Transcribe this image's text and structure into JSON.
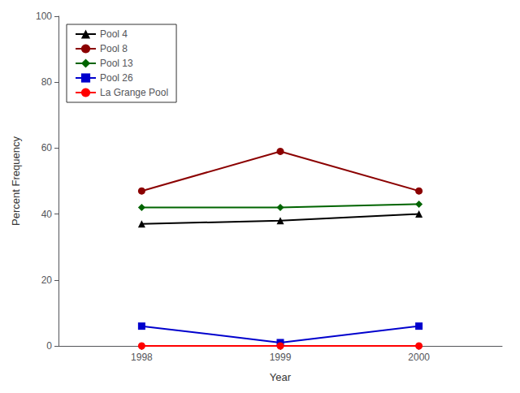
{
  "chart_data": {
    "type": "line",
    "xlabel": "Year",
    "ylabel": "Percent Frequency",
    "x": [
      1998,
      1999,
      2000
    ],
    "series": [
      {
        "name": "Pool 4",
        "color": "#000000",
        "marker": "triangle",
        "values": [
          37,
          38,
          40
        ]
      },
      {
        "name": "Pool 8",
        "color": "#8b0000",
        "marker": "circle",
        "values": [
          47,
          59,
          47
        ]
      },
      {
        "name": "Pool 13",
        "color": "#006400",
        "marker": "diamond",
        "values": [
          42,
          42,
          43
        ]
      },
      {
        "name": "Pool 26",
        "color": "#0000cd",
        "marker": "square",
        "values": [
          6,
          1,
          6
        ]
      },
      {
        "name": "La Grange Pool",
        "color": "#ff0000",
        "marker": "circle",
        "values": [
          0,
          0,
          0
        ]
      }
    ],
    "xlim": [
      1997.4,
      2000.6
    ],
    "xticks": [
      1998,
      1999,
      2000
    ],
    "ylim": [
      0,
      100
    ],
    "yticks": [
      0,
      20,
      40,
      60,
      80,
      100
    ],
    "legend": "upper left",
    "grid": false
  }
}
